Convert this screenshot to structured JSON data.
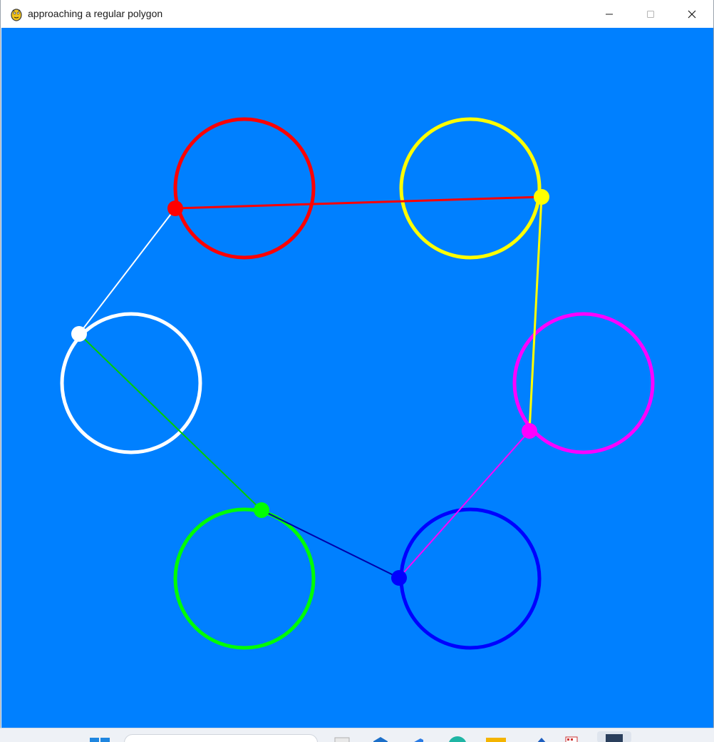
{
  "window": {
    "title": "approaching a regular polygon",
    "icon": "pygame-snake-icon"
  },
  "titlebar_buttons": {
    "minimize": "minimize-icon",
    "maximize": "maximize-icon",
    "close": "close-icon"
  },
  "canvas": {
    "background": "#0080ff",
    "circles": [
      {
        "name": "red-circle",
        "color": "#ff0000"
      },
      {
        "name": "yellow-circle",
        "color": "#ffff00"
      },
      {
        "name": "magenta-circle",
        "color": "#ff00ff"
      },
      {
        "name": "blue-circle",
        "color": "#0000ff"
      },
      {
        "name": "green-circle",
        "color": "#00ff00"
      },
      {
        "name": "white-circle",
        "color": "#ffffff"
      }
    ]
  },
  "taskbar": {
    "start": "windows-start-icon",
    "search": "search-box"
  }
}
